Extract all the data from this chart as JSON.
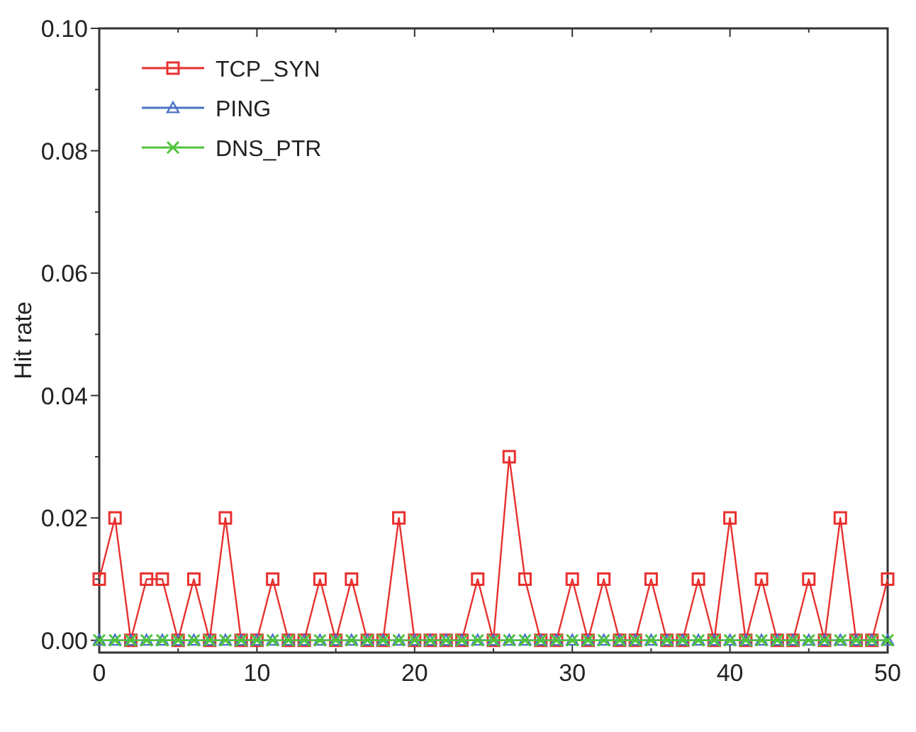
{
  "chart_data": {
    "type": "line",
    "ylabel": "Hit rate",
    "x": [
      0,
      1,
      2,
      3,
      4,
      5,
      6,
      7,
      8,
      9,
      10,
      11,
      12,
      13,
      14,
      15,
      16,
      17,
      18,
      19,
      20,
      21,
      22,
      23,
      24,
      25,
      26,
      27,
      28,
      29,
      30,
      31,
      32,
      33,
      34,
      35,
      36,
      37,
      38,
      39,
      40,
      41,
      42,
      43,
      44,
      45,
      46,
      47,
      48,
      49,
      50
    ],
    "series": [
      {
        "name": "TCP_SYN",
        "color": "#e8302e",
        "marker": "square",
        "values": [
          0.01,
          0.02,
          0,
          0.01,
          0.01,
          0,
          0.01,
          0,
          0.02,
          0,
          0,
          0.01,
          0,
          0,
          0.01,
          0,
          0.01,
          0,
          0,
          0.02,
          0,
          0,
          0,
          0,
          0.01,
          0,
          0.03,
          0.01,
          0,
          0,
          0.01,
          0,
          0.01,
          0,
          0,
          0.01,
          0,
          0,
          0.01,
          0,
          0.02,
          0,
          0.01,
          0,
          0,
          0.01,
          0,
          0.02,
          0,
          0,
          0.01
        ]
      },
      {
        "name": "PING",
        "color": "#4a72c4",
        "marker": "triangle",
        "values": [
          0,
          0,
          0,
          0,
          0,
          0,
          0,
          0,
          0,
          0,
          0,
          0,
          0,
          0,
          0,
          0,
          0,
          0,
          0,
          0,
          0,
          0,
          0,
          0,
          0,
          0,
          0,
          0,
          0,
          0,
          0,
          0,
          0,
          0,
          0,
          0,
          0,
          0,
          0,
          0,
          0,
          0,
          0,
          0,
          0,
          0,
          0,
          0,
          0,
          0,
          0
        ]
      },
      {
        "name": "DNS_PTR",
        "color": "#4fc43a",
        "marker": "cross",
        "values": [
          0,
          0,
          0,
          0,
          0,
          0,
          0,
          0,
          0,
          0,
          0,
          0,
          0,
          0,
          0,
          0,
          0,
          0,
          0,
          0,
          0,
          0,
          0,
          0,
          0,
          0,
          0,
          0,
          0,
          0,
          0,
          0,
          0,
          0,
          0,
          0,
          0,
          0,
          0,
          0,
          0,
          0,
          0,
          0,
          0,
          0,
          0,
          0,
          0,
          0,
          0
        ]
      }
    ],
    "xlim": [
      0,
      50
    ],
    "xticks": [
      0,
      {
        "value": 5,
        "label": null
      },
      10,
      {
        "value": 15,
        "label": null
      },
      20,
      {
        "value": 25,
        "label": null
      },
      30,
      {
        "value": 35,
        "label": null
      },
      40,
      {
        "value": 45,
        "label": null
      },
      50
    ],
    "ylim": [
      -0.002,
      0.1
    ],
    "yticks": [
      {
        "value": 0,
        "label": "0.00"
      },
      {
        "value": 0.01,
        "label": null
      },
      {
        "value": 0.02,
        "label": "0.02"
      },
      {
        "value": 0.03,
        "label": null
      },
      {
        "value": 0.04,
        "label": "0.04"
      },
      {
        "value": 0.05,
        "label": null
      },
      {
        "value": 0.06,
        "label": "0.06"
      },
      {
        "value": 0.07,
        "label": null
      },
      {
        "value": 0.08,
        "label": "0.08"
      },
      {
        "value": 0.09,
        "label": null
      },
      {
        "value": 0.1,
        "label": "0.10"
      }
    ],
    "grid": false,
    "legend": "top left",
    "line_style": "solid"
  }
}
